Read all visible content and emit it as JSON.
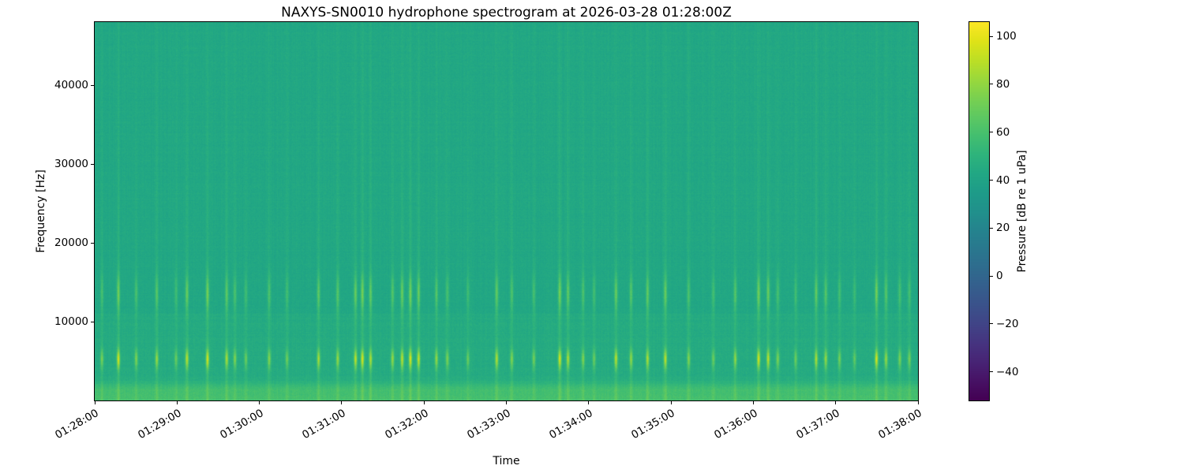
{
  "figure": {
    "background": "#ffffff",
    "frame_color": "#000000"
  },
  "chart_data": {
    "type": "heatmap",
    "title": "NAXYS-SN0010 hydrophone spectrogram at 2026-03-28 01:28:00Z",
    "xlabel": "Time",
    "ylabel": "Frequency [Hz]",
    "x_range_s": [
      0,
      600
    ],
    "y_range_hz": [
      0,
      48000
    ],
    "x_ticks": [
      {
        "s": 0,
        "label": "01:28:00"
      },
      {
        "s": 60,
        "label": "01:29:00"
      },
      {
        "s": 120,
        "label": "01:30:00"
      },
      {
        "s": 180,
        "label": "01:31:00"
      },
      {
        "s": 240,
        "label": "01:32:00"
      },
      {
        "s": 300,
        "label": "01:33:00"
      },
      {
        "s": 360,
        "label": "01:34:00"
      },
      {
        "s": 420,
        "label": "01:35:00"
      },
      {
        "s": 480,
        "label": "01:36:00"
      },
      {
        "s": 540,
        "label": "01:37:00"
      },
      {
        "s": 600,
        "label": "01:38:00"
      }
    ],
    "y_ticks": [
      {
        "hz": 10000,
        "label": "10000"
      },
      {
        "hz": 20000,
        "label": "20000"
      },
      {
        "hz": 30000,
        "label": "30000"
      },
      {
        "hz": 40000,
        "label": "40000"
      }
    ],
    "colorbar": {
      "label": "Pressure [dB re 1 uPa]",
      "colormap": "viridis",
      "vmin": -52,
      "vmax": 106,
      "ticks": [
        {
          "v": 100,
          "label": "100"
        },
        {
          "v": 80,
          "label": "80"
        },
        {
          "v": 60,
          "label": "60"
        },
        {
          "v": 40,
          "label": "40"
        },
        {
          "v": 20,
          "label": "20"
        },
        {
          "v": 0,
          "label": "0"
        },
        {
          "v": -20,
          "label": "−20"
        },
        {
          "v": -40,
          "label": "−40"
        }
      ]
    },
    "spectrogram": {
      "background_db": 43,
      "noise_db": 2.5,
      "row_noise_db": 0.8,
      "col_noise_db": 1.2,
      "low_band_hz": 2000,
      "low_band_boost_db": 14,
      "band_edge_hz": 11000,
      "band_edge_boost_db": 2.5,
      "event_width_s": 0.8,
      "profile": {
        "primary_hz": 5200,
        "primary_sigma_hz": 850,
        "primary_amp_db": 42,
        "secondary_hz": 13600,
        "secondary_sigma_hz": 1600,
        "secondary_amp_db": 24,
        "broadband_amp_db": 10,
        "broadband_decay_hz": 40000
      },
      "events": [
        [
          5,
          0.55
        ],
        [
          17,
          1.0
        ],
        [
          30,
          0.6
        ],
        [
          45,
          0.7
        ],
        [
          59,
          0.5
        ],
        [
          67,
          0.9
        ],
        [
          82,
          1.0
        ],
        [
          96,
          0.8
        ],
        [
          102,
          0.6
        ],
        [
          110,
          0.5
        ],
        [
          127,
          0.65
        ],
        [
          140,
          0.5
        ],
        [
          163,
          0.8
        ],
        [
          177,
          0.7
        ],
        [
          190,
          0.9
        ],
        [
          195,
          1.0
        ],
        [
          201,
          0.8
        ],
        [
          217,
          0.7
        ],
        [
          224,
          0.9
        ],
        [
          230,
          1.0
        ],
        [
          236,
          0.9
        ],
        [
          249,
          0.7
        ],
        [
          257,
          0.6
        ],
        [
          272,
          0.5
        ],
        [
          293,
          0.85
        ],
        [
          304,
          0.6
        ],
        [
          320,
          0.55
        ],
        [
          339,
          1.0
        ],
        [
          345,
          0.8
        ],
        [
          356,
          0.6
        ],
        [
          364,
          0.5
        ],
        [
          380,
          0.9
        ],
        [
          391,
          0.7
        ],
        [
          403,
          0.8
        ],
        [
          416,
          0.9
        ],
        [
          433,
          0.6
        ],
        [
          451,
          0.5
        ],
        [
          467,
          0.7
        ],
        [
          484,
          1.0
        ],
        [
          491,
          0.9
        ],
        [
          498,
          0.6
        ],
        [
          511,
          0.5
        ],
        [
          526,
          0.8
        ],
        [
          533,
          0.7
        ],
        [
          543,
          0.55
        ],
        [
          554,
          0.45
        ],
        [
          570,
          1.0
        ],
        [
          577,
          0.7
        ],
        [
          587,
          0.6
        ],
        [
          594,
          0.55
        ]
      ]
    }
  }
}
